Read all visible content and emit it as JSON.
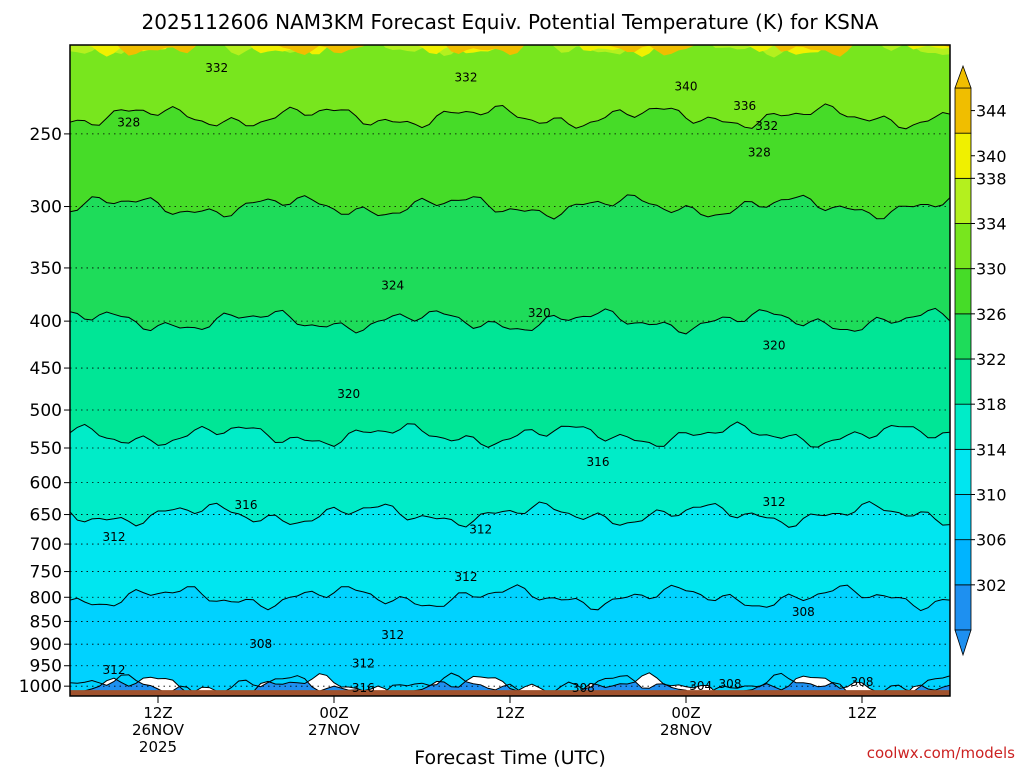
{
  "chart_data": {
    "type": "heatmap",
    "title": "2025112606 NAM3KM Forecast Equiv. Potential Temperature (K) for KSNA",
    "xlabel": "Forecast Time (UTC)",
    "ylabel": "",
    "credit": "coolwx.com/models",
    "x_ticks": [
      {
        "hour": 6,
        "line1": "12Z",
        "line2": "26NOV",
        "line3": "2025"
      },
      {
        "hour": 18,
        "line1": "00Z",
        "line2": "27NOV",
        "line3": ""
      },
      {
        "hour": 30,
        "line1": "12Z",
        "line2": "",
        "line3": ""
      },
      {
        "hour": 42,
        "line1": "00Z",
        "line2": "28NOV",
        "line3": ""
      },
      {
        "hour": 54,
        "line1": "12Z",
        "line2": "",
        "line3": ""
      }
    ],
    "x_range_hours": [
      0,
      60
    ],
    "y_scale": "log pressure (hPa), inverted",
    "y_range_hpa": [
      1025,
      200
    ],
    "y_ticks": [
      250,
      300,
      350,
      400,
      450,
      500,
      550,
      600,
      650,
      700,
      750,
      800,
      850,
      900,
      950,
      1000
    ],
    "gridlines": "dotted at each pressure tick",
    "ground": {
      "color": "#a0522d",
      "from_hpa": 1010
    },
    "contour_interval": 4,
    "contour_labels": [
      {
        "text": "332",
        "hour": 10,
        "hpa": 212
      },
      {
        "text": "332",
        "hour": 27,
        "hpa": 217
      },
      {
        "text": "340",
        "hour": 42,
        "hpa": 222
      },
      {
        "text": "336",
        "hour": 46,
        "hpa": 233
      },
      {
        "text": "332",
        "hour": 47.5,
        "hpa": 245
      },
      {
        "text": "328",
        "hour": 4,
        "hpa": 243
      },
      {
        "text": "328",
        "hour": 47,
        "hpa": 262
      },
      {
        "text": "324",
        "hour": 22,
        "hpa": 366
      },
      {
        "text": "320",
        "hour": 32,
        "hpa": 392
      },
      {
        "text": "320",
        "hour": 48,
        "hpa": 425
      },
      {
        "text": "320",
        "hour": 19,
        "hpa": 480
      },
      {
        "text": "316",
        "hour": 36,
        "hpa": 570
      },
      {
        "text": "316",
        "hour": 12,
        "hpa": 635
      },
      {
        "text": "312",
        "hour": 3,
        "hpa": 688
      },
      {
        "text": "312",
        "hour": 28,
        "hpa": 675
      },
      {
        "text": "312",
        "hour": 48,
        "hpa": 630
      },
      {
        "text": "312",
        "hour": 27,
        "hpa": 760
      },
      {
        "text": "308",
        "hour": 50,
        "hpa": 830
      },
      {
        "text": "312",
        "hour": 22,
        "hpa": 880
      },
      {
        "text": "308",
        "hour": 13,
        "hpa": 900
      },
      {
        "text": "312",
        "hour": 20,
        "hpa": 945
      },
      {
        "text": "312",
        "hour": 3,
        "hpa": 960
      },
      {
        "text": "316",
        "hour": 20,
        "hpa": 1005
      },
      {
        "text": "308",
        "hour": 35,
        "hpa": 1005
      },
      {
        "text": "304",
        "hour": 43,
        "hpa": 1000
      },
      {
        "text": "308",
        "hour": 45,
        "hpa": 995
      },
      {
        "text": "308",
        "hour": 54,
        "hpa": 990
      }
    ],
    "colorbar": {
      "ticks": [
        302,
        306,
        310,
        314,
        318,
        322,
        326,
        330,
        334,
        338,
        340,
        344
      ],
      "levels": [
        {
          "from": 298,
          "to": 302,
          "color": "#1e90f0"
        },
        {
          "from": 302,
          "to": 306,
          "color": "#00b4ff"
        },
        {
          "from": 306,
          "to": 310,
          "color": "#00d2ff"
        },
        {
          "from": 310,
          "to": 314,
          "color": "#00e6f0"
        },
        {
          "from": 314,
          "to": 318,
          "color": "#00ecc8"
        },
        {
          "from": 318,
          "to": 322,
          "color": "#00e696"
        },
        {
          "from": 322,
          "to": 326,
          "color": "#1edc5a"
        },
        {
          "from": 326,
          "to": 330,
          "color": "#46dc28"
        },
        {
          "from": 330,
          "to": 334,
          "color": "#78e61e"
        },
        {
          "from": 334,
          "to": 338,
          "color": "#b4f01e"
        },
        {
          "from": 338,
          "to": 342,
          "color": "#f0f000"
        },
        {
          "from": 342,
          "to": 346,
          "color": "#f0be00"
        }
      ]
    },
    "theta_e_profile": [
      {
        "hpa": 200,
        "k": 334
      },
      {
        "hpa": 220,
        "k": 332
      },
      {
        "hpa": 250,
        "k": 329
      },
      {
        "hpa": 300,
        "k": 326
      },
      {
        "hpa": 350,
        "k": 324
      },
      {
        "hpa": 400,
        "k": 322
      },
      {
        "hpa": 450,
        "k": 320
      },
      {
        "hpa": 500,
        "k": 319
      },
      {
        "hpa": 550,
        "k": 317.5
      },
      {
        "hpa": 600,
        "k": 315.5
      },
      {
        "hpa": 650,
        "k": 314
      },
      {
        "hpa": 700,
        "k": 313
      },
      {
        "hpa": 750,
        "k": 312
      },
      {
        "hpa": 800,
        "k": 310
      },
      {
        "hpa": 850,
        "k": 308.5
      },
      {
        "hpa": 900,
        "k": 308
      },
      {
        "hpa": 950,
        "k": 307.5
      },
      {
        "hpa": 1000,
        "k": 306
      }
    ]
  }
}
